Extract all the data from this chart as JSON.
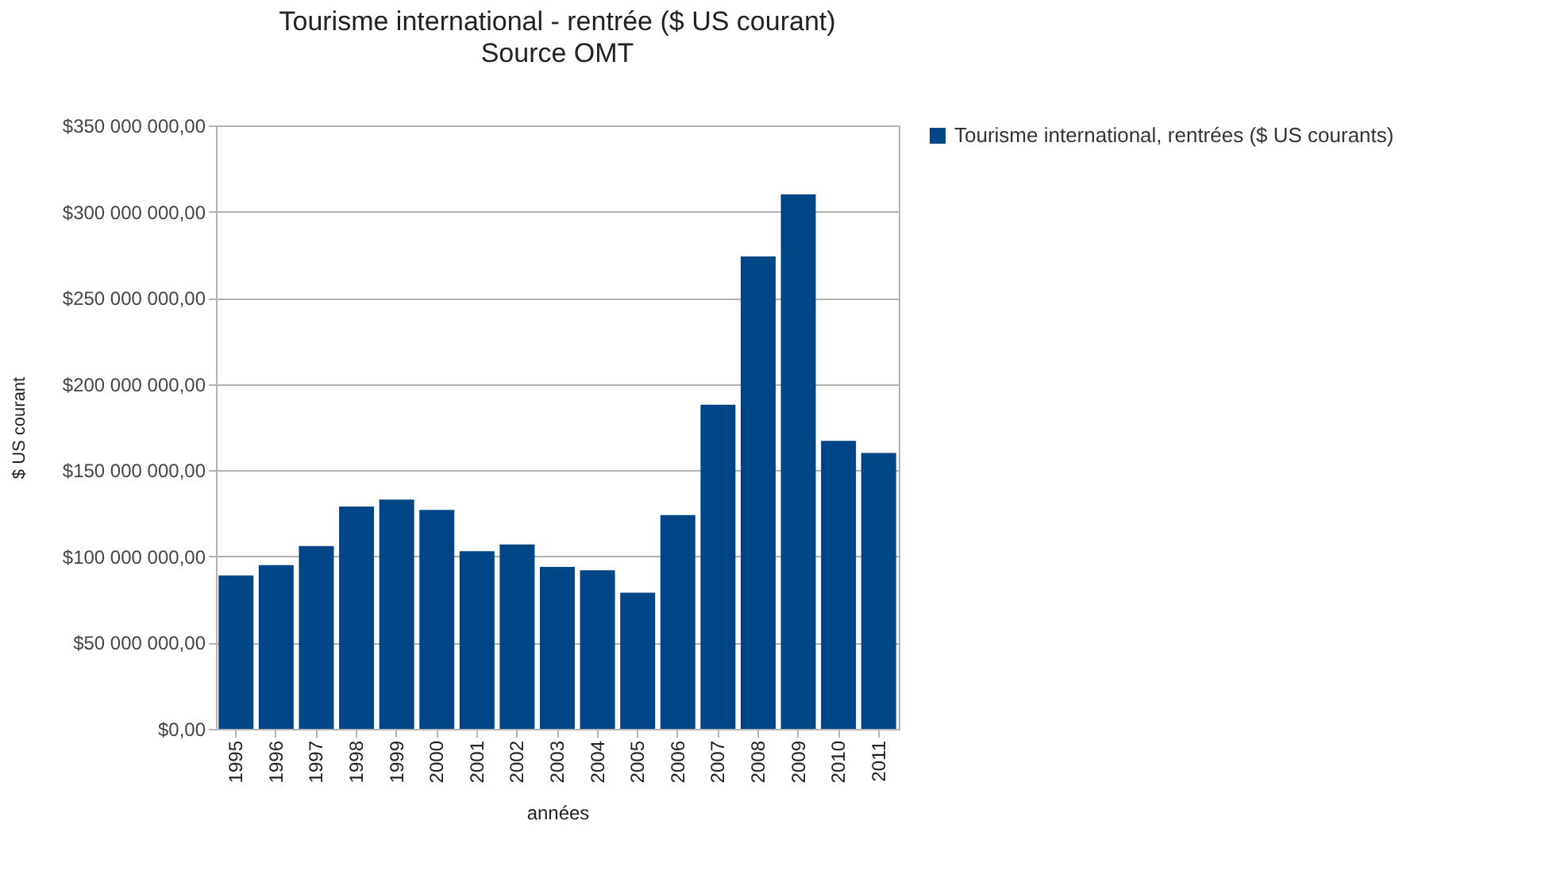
{
  "chart_data": {
    "type": "bar",
    "title": "Tourisme international - rentrée ($ US courant)",
    "subtitle": "Source OMT",
    "xlabel": "années",
    "ylabel": "$ US courant",
    "categories": [
      "1995",
      "1996",
      "1997",
      "1998",
      "1999",
      "2000",
      "2001",
      "2002",
      "2003",
      "2004",
      "2005",
      "2006",
      "2007",
      "2008",
      "2009",
      "2010",
      "2011"
    ],
    "series": [
      {
        "name": "Tourisme international, rentrées ($ US courants)",
        "color": "#004586",
        "values": [
          89000000,
          95000000,
          106000000,
          129000000,
          133000000,
          127000000,
          103000000,
          107000000,
          94000000,
          92000000,
          79000000,
          124000000,
          188000000,
          274000000,
          310000000,
          167000000,
          160000000
        ]
      }
    ],
    "ylim": [
      0,
      350000000
    ],
    "yticks": [
      {
        "value": 0,
        "label": "$0,00"
      },
      {
        "value": 50000000,
        "label": "$50 000 000,00"
      },
      {
        "value": 100000000,
        "label": "$100 000 000,00"
      },
      {
        "value": 150000000,
        "label": "$150 000 000,00"
      },
      {
        "value": 200000000,
        "label": "$200 000 000,00"
      },
      {
        "value": 250000000,
        "label": "$250 000 000,00"
      },
      {
        "value": 300000000,
        "label": "$300 000 000,00"
      },
      {
        "value": 350000000,
        "label": "$350 000 000,00"
      }
    ],
    "grid": "y",
    "legend": "right"
  }
}
